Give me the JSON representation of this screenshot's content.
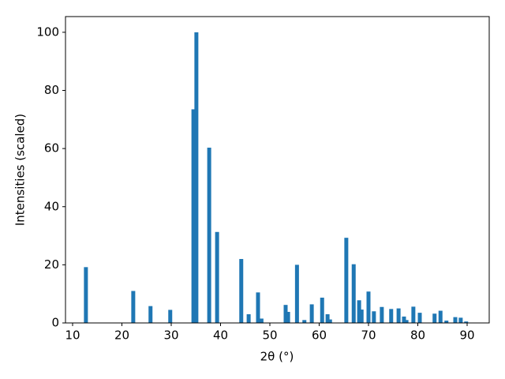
{
  "chart_data": {
    "type": "bar",
    "xlabel": "2θ (°)",
    "ylabel": "Intensities (scaled)",
    "x": [
      12.7,
      22.3,
      25.8,
      29.8,
      34.5,
      35.1,
      37.7,
      39.3,
      44.2,
      45.7,
      47.6,
      48.3,
      53.2,
      53.7,
      55.5,
      57.0,
      58.5,
      60.6,
      61.7,
      62.2,
      65.5,
      67.0,
      68.1,
      68.6,
      70.0,
      71.1,
      72.7,
      74.6,
      76.1,
      77.2,
      77.7,
      79.1,
      80.4,
      83.4,
      84.6,
      85.8,
      87.6,
      88.7,
      89.8
    ],
    "values": [
      19.2,
      11,
      5.8,
      4.5,
      73.5,
      100,
      60.3,
      31.3,
      22,
      3,
      10.5,
      1.5,
      6.2,
      3.8,
      20,
      1,
      6.4,
      8.7,
      3,
      1.2,
      29.3,
      20.2,
      7.8,
      4.6,
      10.8,
      4,
      5.5,
      4.8,
      5,
      2.2,
      1,
      5.6,
      3.5,
      3.2,
      4.2,
      0.8,
      2,
      1.8,
      0.5
    ],
    "color": "#1f77b4",
    "xlim": [
      8.56,
      94.48
    ],
    "xticks": [
      10,
      20,
      30,
      40,
      50,
      60,
      70,
      80,
      90
    ],
    "ylim": [
      0,
      105.4
    ],
    "yticks": [
      0,
      20,
      40,
      60,
      80,
      100
    ],
    "grid": false
  }
}
